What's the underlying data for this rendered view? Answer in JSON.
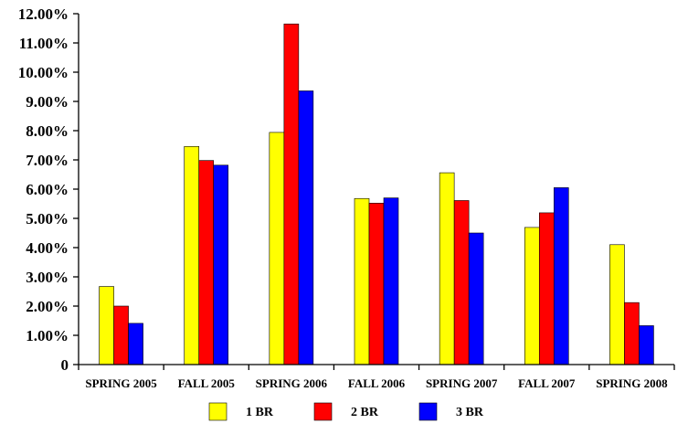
{
  "chart_data": {
    "type": "bar",
    "title": "",
    "xlabel": "",
    "ylabel": "",
    "categories": [
      "SPRING 2005",
      "FALL 2005",
      "SPRING 2006",
      "FALL 2006",
      "SPRING 2007",
      "FALL 2007",
      "SPRING 2008"
    ],
    "ylim": [
      0,
      0.12
    ],
    "yticks": [
      0,
      0.01,
      0.02,
      0.03,
      0.04,
      0.05,
      0.06,
      0.07,
      0.08,
      0.09,
      0.1,
      0.11,
      0.12
    ],
    "ytick_labels": [
      "0",
      "1.00%",
      "2.00%",
      "3.00%",
      "4.00%",
      "5.00%",
      "6.00%",
      "7.00%",
      "8.00%",
      "9.00%",
      "10.00%",
      "11.00%",
      "12.00%"
    ],
    "grid": false,
    "legend_position": "bottom",
    "series": [
      {
        "name": "1 BR",
        "color": "#ffff00",
        "values": [
          0.0267,
          0.0746,
          0.0794,
          0.0568,
          0.0656,
          0.0469,
          0.041
        ]
      },
      {
        "name": "2 BR",
        "color": "#ff0000",
        "values": [
          0.02,
          0.0698,
          0.1165,
          0.0552,
          0.0561,
          0.0519,
          0.0212
        ]
      },
      {
        "name": "3 BR",
        "color": "#0000ff",
        "values": [
          0.0141,
          0.0682,
          0.0936,
          0.057,
          0.045,
          0.0605,
          0.0133
        ]
      }
    ]
  }
}
